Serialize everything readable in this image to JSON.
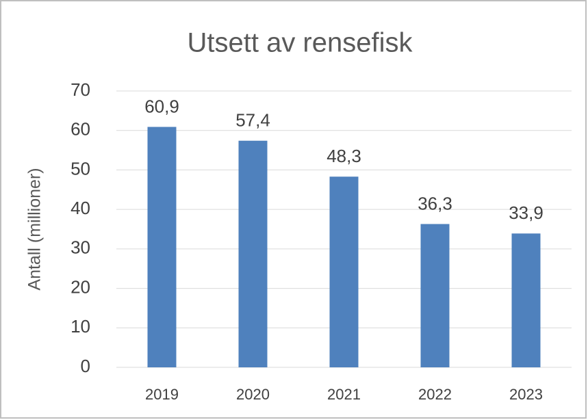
{
  "chart_data": {
    "type": "bar",
    "title": "Utsett av rensefisk",
    "y_label": "Antall (millioner)",
    "categories": [
      "2019",
      "2020",
      "2021",
      "2022",
      "2023"
    ],
    "values": [
      60.9,
      57.4,
      48.3,
      36.3,
      33.9
    ],
    "value_labels": [
      "60,9",
      "57,4",
      "48,3",
      "36,3",
      "33,9"
    ],
    "color": "#4f81bd",
    "ylim": [
      0,
      70
    ],
    "yticks": [
      0,
      10,
      20,
      30,
      40,
      50,
      60,
      70
    ],
    "grid": true
  }
}
